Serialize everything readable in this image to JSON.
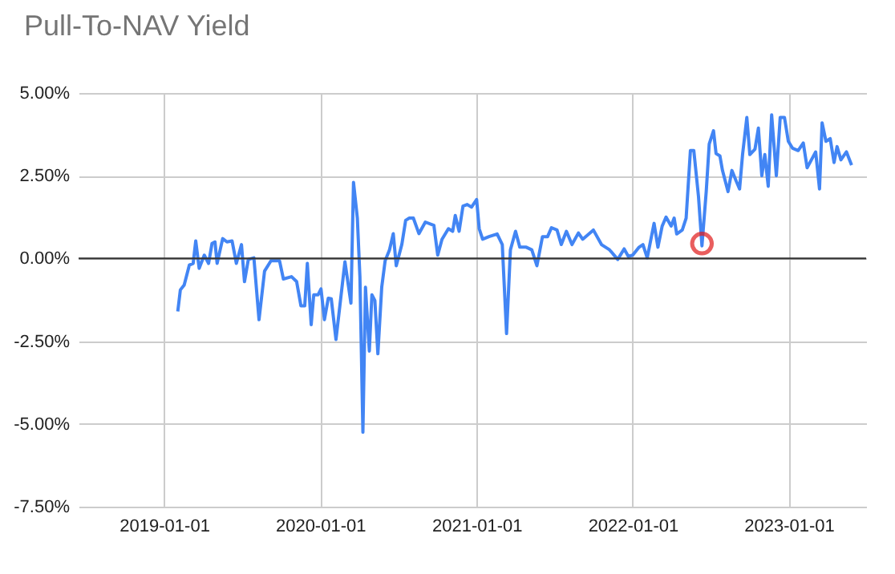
{
  "chart_data": {
    "type": "line",
    "title": "Pull-To-NAV Yield",
    "x": [
      "2019-02-02",
      "2019-02-08",
      "2019-02-17",
      "2019-03-01",
      "2019-03-10",
      "2019-03-16",
      "2019-03-24",
      "2019-04-05",
      "2019-04-15",
      "2019-04-23",
      "2019-04-30",
      "2019-05-05",
      "2019-05-18",
      "2019-05-28",
      "2019-06-09",
      "2019-06-19",
      "2019-07-01",
      "2019-07-08",
      "2019-07-17",
      "2019-07-30",
      "2019-08-11",
      "2019-08-24",
      "2019-09-08",
      "2019-09-28",
      "2019-10-07",
      "2019-10-26",
      "2019-11-07",
      "2019-11-17",
      "2019-11-26",
      "2019-12-02",
      "2019-12-11",
      "2019-12-17",
      "2019-12-27",
      "2020-01-03",
      "2020-01-11",
      "2020-01-20",
      "2020-01-27",
      "2020-02-07",
      "2020-02-28",
      "2020-03-13",
      "2020-03-19",
      "2020-03-28",
      "2020-04-03",
      "2020-04-10",
      "2020-04-16",
      "2020-04-25",
      "2020-05-01",
      "2020-05-08",
      "2020-05-15",
      "2020-05-24",
      "2020-06-01",
      "2020-06-11",
      "2020-06-20",
      "2020-06-27",
      "2020-07-10",
      "2020-07-19",
      "2020-07-27",
      "2020-08-06",
      "2020-08-19",
      "2020-09-03",
      "2020-09-23",
      "2020-10-02",
      "2020-10-12",
      "2020-10-27",
      "2020-11-06",
      "2020-11-12",
      "2020-11-21",
      "2020-11-30",
      "2020-12-10",
      "2020-12-20",
      "2021-01-01",
      "2021-01-07",
      "2021-01-15",
      "2021-01-30",
      "2021-02-18",
      "2021-03-02",
      "2021-03-12",
      "2021-03-21",
      "2021-04-02",
      "2021-04-12",
      "2021-04-27",
      "2021-05-10",
      "2021-05-22",
      "2021-06-04",
      "2021-06-16",
      "2021-06-25",
      "2021-07-08",
      "2021-07-18",
      "2021-07-30",
      "2021-08-12",
      "2021-08-27",
      "2021-09-06",
      "2021-10-01",
      "2021-10-20",
      "2021-11-08",
      "2021-11-27",
      "2021-12-12",
      "2021-12-22",
      "2022-01-01",
      "2022-01-16",
      "2022-01-25",
      "2022-02-04",
      "2022-02-20",
      "2022-03-01",
      "2022-03-11",
      "2022-03-20",
      "2022-04-01",
      "2022-04-08",
      "2022-04-14",
      "2022-04-27",
      "2022-05-06",
      "2022-05-16",
      "2022-05-24",
      "2022-06-04",
      "2022-06-12",
      "2022-06-22",
      "2022-06-29",
      "2022-07-09",
      "2022-07-15",
      "2022-07-24",
      "2022-07-30",
      "2022-08-12",
      "2022-08-21",
      "2022-08-31",
      "2022-09-08",
      "2022-09-15",
      "2022-09-25",
      "2022-10-02",
      "2022-10-14",
      "2022-10-22",
      "2022-10-30",
      "2022-11-06",
      "2022-11-14",
      "2022-11-22",
      "2022-12-03",
      "2022-12-12",
      "2022-12-22",
      "2022-12-31",
      "2023-01-10",
      "2023-01-23",
      "2023-02-04",
      "2023-02-13",
      "2023-02-23",
      "2023-03-05",
      "2023-03-14",
      "2023-03-20",
      "2023-03-29",
      "2023-04-08",
      "2023-04-17",
      "2023-04-24",
      "2023-05-03",
      "2023-05-16",
      "2023-05-28"
    ],
    "series": [
      {
        "color": "#4285f4",
        "values": [
          -1.6,
          -0.95,
          -0.8,
          -0.2,
          -0.15,
          0.53,
          -0.3,
          0.1,
          -0.15,
          0.45,
          0.5,
          -0.15,
          0.6,
          0.5,
          0.53,
          -0.15,
          0.42,
          -0.7,
          -0.03,
          0.02,
          -1.85,
          -0.38,
          -0.07,
          -0.07,
          -0.62,
          -0.55,
          -0.7,
          -1.43,
          -1.43,
          -0.15,
          -2.0,
          -1.1,
          -1.1,
          -0.92,
          -1.85,
          -1.2,
          -1.22,
          -2.45,
          -0.1,
          -1.35,
          2.3,
          1.22,
          -0.55,
          -5.25,
          -0.87,
          -2.8,
          -1.1,
          -1.27,
          -2.88,
          -0.87,
          -0.07,
          0.25,
          0.75,
          -0.22,
          0.42,
          1.15,
          1.22,
          1.22,
          0.75,
          1.1,
          1.0,
          0.1,
          0.58,
          0.9,
          0.82,
          1.3,
          0.82,
          1.58,
          1.63,
          1.55,
          1.78,
          0.9,
          0.58,
          0.66,
          0.74,
          0.42,
          -2.27,
          0.26,
          0.82,
          0.34,
          0.34,
          0.26,
          -0.22,
          0.66,
          0.66,
          0.93,
          0.86,
          0.42,
          0.82,
          0.42,
          0.77,
          0.58,
          0.86,
          0.42,
          0.26,
          -0.03,
          0.29,
          0.06,
          0.1,
          0.34,
          0.42,
          0.02,
          1.06,
          0.34,
          0.98,
          1.25,
          0.98,
          1.22,
          0.74,
          0.86,
          1.22,
          3.26,
          3.26,
          1.86,
          0.38,
          2.02,
          3.46,
          3.86,
          3.17,
          3.1,
          2.66,
          2.02,
          2.66,
          2.34,
          2.1,
          3.14,
          4.26,
          3.14,
          3.3,
          3.94,
          2.5,
          3.14,
          2.18,
          4.34,
          2.5,
          4.26,
          4.26,
          3.54,
          3.33,
          3.26,
          3.49,
          2.74,
          2.98,
          3.22,
          2.1,
          4.1,
          3.54,
          3.62,
          2.9,
          3.38,
          2.98,
          3.22,
          2.82
        ]
      },
      {
        "type": "scatter",
        "color": "#e01b1b",
        "marker": "circle",
        "x": [
          "2022-06-12"
        ],
        "values": [
          0.45
        ]
      }
    ],
    "xlim": [
      "2018-06-15",
      "2023-07-01"
    ],
    "xticks": [
      "2019-01-01",
      "2020-01-01",
      "2021-01-01",
      "2022-01-01",
      "2023-01-01"
    ],
    "ylim": [
      -7.5,
      5
    ],
    "yticks": [
      {
        "value": -7.5,
        "label": "-7.50%"
      },
      {
        "value": -5,
        "label": "-5.00%"
      },
      {
        "value": -2.5,
        "label": "-2.50%"
      },
      {
        "value": 0,
        "label": "0.00%"
      },
      {
        "value": 2.5,
        "label": "2.50%"
      },
      {
        "value": 5,
        "label": "5.00%"
      }
    ],
    "grid": true,
    "ref_lines": [
      {
        "axis": "y",
        "value": 0,
        "color": "#333333"
      }
    ]
  }
}
